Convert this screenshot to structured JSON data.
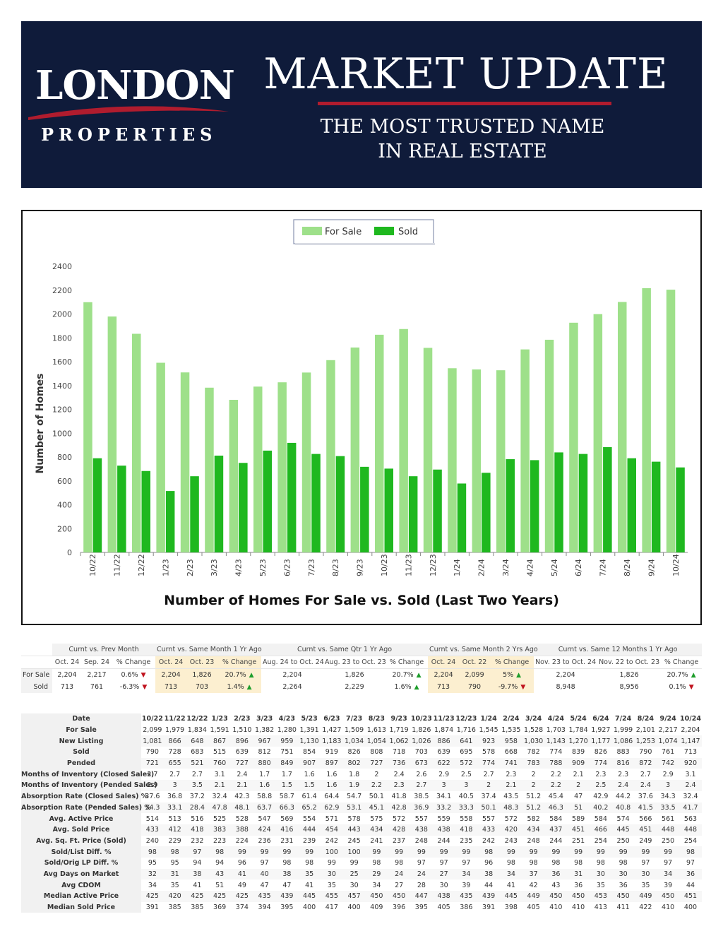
{
  "header": {
    "logo_main": "LONDON",
    "logo_sub": "PROPERTIES",
    "title": "MARKET UPDATE",
    "tagline_line1": "THE MOST TRUSTED NAME",
    "tagline_line2": "IN REAL ESTATE",
    "colors": {
      "background": "#0f1b3a",
      "accent": "#b01c2e"
    }
  },
  "chart_data": {
    "type": "bar",
    "title": "Number of Homes For Sale vs. Sold (Last Two Years)",
    "xlabel": "",
    "ylabel": "Number of Homes",
    "ylim": [
      0,
      2400
    ],
    "yticks": [
      0,
      200,
      400,
      600,
      800,
      1000,
      1200,
      1400,
      1600,
      1800,
      2000,
      2200,
      2400
    ],
    "legend_position": "top-center",
    "grid": false,
    "categories": [
      "10/22",
      "11/22",
      "12/22",
      "1/23",
      "2/23",
      "3/23",
      "4/23",
      "5/23",
      "6/23",
      "7/23",
      "8/23",
      "9/23",
      "10/23",
      "11/23",
      "12/23",
      "1/24",
      "2/24",
      "3/24",
      "4/24",
      "5/24",
      "6/24",
      "7/24",
      "8/24",
      "9/24",
      "10/24"
    ],
    "series": [
      {
        "name": "For Sale",
        "color": "#9ee08a",
        "values": [
          2099,
          1979,
          1834,
          1591,
          1510,
          1382,
          1280,
          1391,
          1427,
          1509,
          1613,
          1719,
          1826,
          1874,
          1716,
          1545,
          1535,
          1528,
          1703,
          1784,
          1927,
          1999,
          2101,
          2217,
          2204
        ]
      },
      {
        "name": "Sold",
        "color": "#1fb81f",
        "values": [
          790,
          728,
          683,
          515,
          639,
          812,
          751,
          854,
          919,
          826,
          808,
          718,
          703,
          639,
          695,
          578,
          668,
          782,
          774,
          839,
          826,
          883,
          790,
          761,
          713
        ]
      }
    ]
  },
  "comparison": {
    "groups": [
      "Curnt vs. Prev Month",
      "Curnt vs. Same Month 1 Yr Ago",
      "Curnt vs. Same Qtr 1 Yr Ago",
      "Curnt vs. Same Month 2 Yrs Ago",
      "Curnt vs. Same 12 Months 1 Yr Ago"
    ],
    "subheaders": [
      "Oct. 24",
      "Sep. 24",
      "% Change",
      "Oct. 24",
      "Oct. 23",
      "% Change",
      "Aug. 24 to Oct. 24",
      "Aug. 23 to Oct. 23",
      "% Change",
      "Oct. 24",
      "Oct. 22",
      "% Change",
      "Nov. 23 to Oct. 24",
      "Nov. 22 to Oct. 23",
      "% Change"
    ],
    "rows": [
      {
        "label": "For Sale",
        "cells": [
          "2,204",
          "2,217",
          "0.6%",
          "2,204",
          "1,826",
          "20.7%",
          "2,204",
          "1,826",
          "20.7%",
          "2,204",
          "2,099",
          "5%",
          "2,204",
          "1,826",
          "20.7%"
        ],
        "arrows": [
          "down",
          "up",
          "up",
          "up",
          "up"
        ]
      },
      {
        "label": "Sold",
        "cells": [
          "713",
          "761",
          "-6.3%",
          "713",
          "703",
          "1.4%",
          "2,264",
          "2,229",
          "1.6%",
          "713",
          "790",
          "-9.7%",
          "8,948",
          "8,956",
          "0.1%"
        ],
        "arrows": [
          "down",
          "up",
          "up",
          "down",
          "down"
        ]
      }
    ],
    "arrow_up": "▲",
    "arrow_down": "▼"
  },
  "stats": {
    "corner": "Date",
    "months": [
      "10/22",
      "11/22",
      "12/22",
      "1/23",
      "2/23",
      "3/23",
      "4/23",
      "5/23",
      "6/23",
      "7/23",
      "8/23",
      "9/23",
      "10/23",
      "11/23",
      "12/23",
      "1/24",
      "2/24",
      "3/24",
      "4/24",
      "5/24",
      "6/24",
      "7/24",
      "8/24",
      "9/24",
      "10/24"
    ],
    "rows": [
      {
        "label": "For Sale",
        "values": [
          "2,099",
          "1,979",
          "1,834",
          "1,591",
          "1,510",
          "1,382",
          "1,280",
          "1,391",
          "1,427",
          "1,509",
          "1,613",
          "1,719",
          "1,826",
          "1,874",
          "1,716",
          "1,545",
          "1,535",
          "1,528",
          "1,703",
          "1,784",
          "1,927",
          "1,999",
          "2,101",
          "2,217",
          "2,204"
        ]
      },
      {
        "label": "New Listing",
        "values": [
          "1,081",
          "866",
          "648",
          "867",
          "896",
          "967",
          "959",
          "1,130",
          "1,183",
          "1,034",
          "1,054",
          "1,062",
          "1,026",
          "886",
          "641",
          "923",
          "958",
          "1,030",
          "1,143",
          "1,270",
          "1,177",
          "1,086",
          "1,253",
          "1,074",
          "1,147"
        ]
      },
      {
        "label": "Sold",
        "values": [
          "790",
          "728",
          "683",
          "515",
          "639",
          "812",
          "751",
          "854",
          "919",
          "826",
          "808",
          "718",
          "703",
          "639",
          "695",
          "578",
          "668",
          "782",
          "774",
          "839",
          "826",
          "883",
          "790",
          "761",
          "713"
        ]
      },
      {
        "label": "Pended",
        "values": [
          "721",
          "655",
          "521",
          "760",
          "727",
          "880",
          "849",
          "907",
          "897",
          "802",
          "727",
          "736",
          "673",
          "622",
          "572",
          "774",
          "741",
          "783",
          "788",
          "909",
          "774",
          "816",
          "872",
          "742",
          "920"
        ]
      },
      {
        "label": "Months of Inventory (Closed Sales)",
        "values": [
          "2.7",
          "2.7",
          "2.7",
          "3.1",
          "2.4",
          "1.7",
          "1.7",
          "1.6",
          "1.6",
          "1.8",
          "2",
          "2.4",
          "2.6",
          "2.9",
          "2.5",
          "2.7",
          "2.3",
          "2",
          "2.2",
          "2.1",
          "2.3",
          "2.3",
          "2.7",
          "2.9",
          "3.1"
        ]
      },
      {
        "label": "Months of Inventory (Pended Sales)",
        "values": [
          "2.9",
          "3",
          "3.5",
          "2.1",
          "2.1",
          "1.6",
          "1.5",
          "1.5",
          "1.6",
          "1.9",
          "2.2",
          "2.3",
          "2.7",
          "3",
          "3",
          "2",
          "2.1",
          "2",
          "2.2",
          "2",
          "2.5",
          "2.4",
          "2.4",
          "3",
          "2.4"
        ]
      },
      {
        "label": "Absorption Rate (Closed Sales) %",
        "values": [
          "37.6",
          "36.8",
          "37.2",
          "32.4",
          "42.3",
          "58.8",
          "58.7",
          "61.4",
          "64.4",
          "54.7",
          "50.1",
          "41.8",
          "38.5",
          "34.1",
          "40.5",
          "37.4",
          "43.5",
          "51.2",
          "45.4",
          "47",
          "42.9",
          "44.2",
          "37.6",
          "34.3",
          "32.4"
        ]
      },
      {
        "label": "Absorption Rate (Pended Sales) %",
        "values": [
          "34.3",
          "33.1",
          "28.4",
          "47.8",
          "48.1",
          "63.7",
          "66.3",
          "65.2",
          "62.9",
          "53.1",
          "45.1",
          "42.8",
          "36.9",
          "33.2",
          "33.3",
          "50.1",
          "48.3",
          "51.2",
          "46.3",
          "51",
          "40.2",
          "40.8",
          "41.5",
          "33.5",
          "41.7"
        ]
      },
      {
        "label": "Avg. Active Price",
        "values": [
          "514",
          "513",
          "516",
          "525",
          "528",
          "547",
          "569",
          "554",
          "571",
          "578",
          "575",
          "572",
          "557",
          "559",
          "558",
          "557",
          "572",
          "582",
          "584",
          "589",
          "584",
          "574",
          "566",
          "561",
          "563"
        ]
      },
      {
        "label": "Avg. Sold Price",
        "values": [
          "433",
          "412",
          "418",
          "383",
          "388",
          "424",
          "416",
          "444",
          "454",
          "443",
          "434",
          "428",
          "438",
          "438",
          "418",
          "433",
          "420",
          "434",
          "437",
          "451",
          "466",
          "445",
          "451",
          "448",
          "448"
        ]
      },
      {
        "label": "Avg. Sq. Ft. Price (Sold)",
        "values": [
          "240",
          "229",
          "232",
          "223",
          "224",
          "236",
          "231",
          "239",
          "242",
          "245",
          "241",
          "237",
          "248",
          "244",
          "235",
          "242",
          "243",
          "248",
          "244",
          "251",
          "254",
          "250",
          "249",
          "250",
          "254"
        ]
      },
      {
        "label": "Sold/List Diff. %",
        "values": [
          "98",
          "98",
          "97",
          "98",
          "99",
          "99",
          "99",
          "99",
          "100",
          "100",
          "99",
          "99",
          "99",
          "99",
          "99",
          "98",
          "99",
          "99",
          "99",
          "99",
          "99",
          "99",
          "99",
          "99",
          "98"
        ]
      },
      {
        "label": "Sold/Orig LP Diff. %",
        "values": [
          "95",
          "95",
          "94",
          "94",
          "96",
          "97",
          "98",
          "98",
          "99",
          "99",
          "98",
          "98",
          "97",
          "97",
          "97",
          "96",
          "98",
          "98",
          "98",
          "98",
          "98",
          "98",
          "97",
          "97",
          "97"
        ]
      },
      {
        "label": "Avg Days on Market",
        "values": [
          "32",
          "31",
          "38",
          "43",
          "41",
          "40",
          "38",
          "35",
          "30",
          "25",
          "29",
          "24",
          "24",
          "27",
          "34",
          "38",
          "34",
          "37",
          "36",
          "31",
          "30",
          "30",
          "30",
          "34",
          "36"
        ]
      },
      {
        "label": "Avg CDOM",
        "values": [
          "34",
          "35",
          "41",
          "51",
          "49",
          "47",
          "47",
          "41",
          "35",
          "30",
          "34",
          "27",
          "28",
          "30",
          "39",
          "44",
          "41",
          "42",
          "43",
          "36",
          "35",
          "36",
          "35",
          "39",
          "44"
        ]
      },
      {
        "label": "Median Active Price",
        "values": [
          "425",
          "420",
          "425",
          "425",
          "425",
          "435",
          "439",
          "445",
          "455",
          "457",
          "450",
          "450",
          "447",
          "438",
          "435",
          "439",
          "445",
          "449",
          "450",
          "450",
          "453",
          "450",
          "449",
          "450",
          "451"
        ]
      },
      {
        "label": "Median Sold Price",
        "values": [
          "391",
          "385",
          "385",
          "369",
          "374",
          "394",
          "395",
          "400",
          "417",
          "400",
          "409",
          "396",
          "395",
          "405",
          "386",
          "391",
          "398",
          "405",
          "410",
          "410",
          "413",
          "411",
          "422",
          "410",
          "400"
        ]
      }
    ]
  }
}
